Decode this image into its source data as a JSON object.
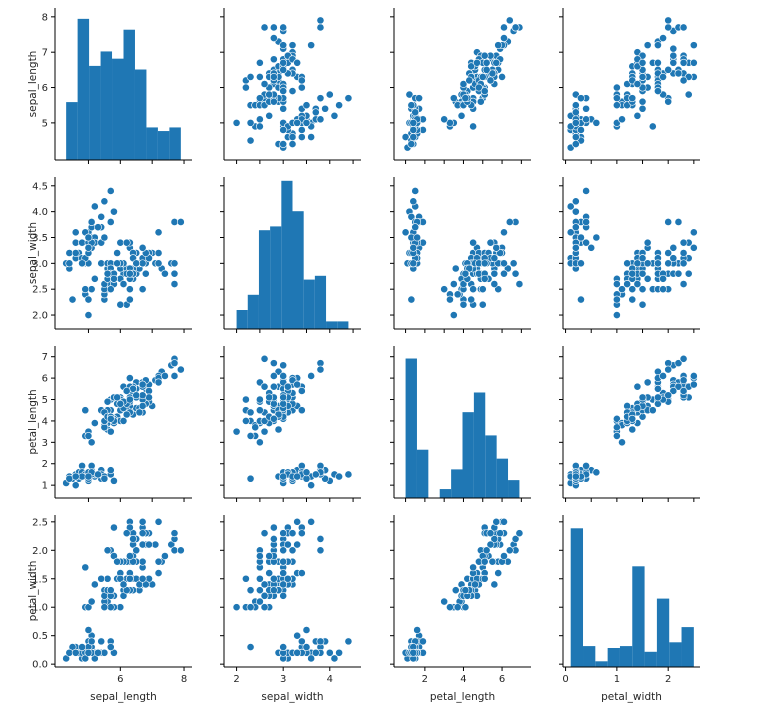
{
  "chart_data": {
    "type": "pairplot",
    "variables": [
      "sepal_length",
      "sepal_width",
      "petal_length",
      "petal_width"
    ],
    "axis_ranges": {
      "sepal_length": [
        3.95,
        8.25
      ],
      "sepal_width": [
        1.73,
        4.67
      ],
      "petal_length": [
        0.4,
        7.5
      ],
      "petal_width": [
        -0.05,
        2.62
      ]
    },
    "ticks": {
      "sepal_length": [
        {
          "value": 5,
          "label": "5"
        },
        {
          "value": 6,
          "label": "6"
        },
        {
          "value": 7,
          "label": "7"
        },
        {
          "value": 8,
          "label": "8"
        }
      ],
      "sepal_width": [
        {
          "value": 2.0,
          "label": "2.0"
        },
        {
          "value": 2.5,
          "label": "2.5"
        },
        {
          "value": 3.0,
          "label": "3.0"
        },
        {
          "value": 3.5,
          "label": "3.5"
        },
        {
          "value": 4.0,
          "label": "4.0"
        },
        {
          "value": 4.5,
          "label": "4.5"
        }
      ],
      "petal_length": [
        {
          "value": 1,
          "label": "1"
        },
        {
          "value": 2,
          "label": "2"
        },
        {
          "value": 3,
          "label": "3"
        },
        {
          "value": 4,
          "label": "4"
        },
        {
          "value": 5,
          "label": "5"
        },
        {
          "value": 6,
          "label": "6"
        },
        {
          "value": 7,
          "label": "7"
        }
      ],
      "petal_width": [
        {
          "value": 0.0,
          "label": "0.0"
        },
        {
          "value": 0.5,
          "label": "0.5"
        },
        {
          "value": 1.0,
          "label": "1.0"
        },
        {
          "value": 1.5,
          "label": "1.5"
        },
        {
          "value": 2.0,
          "label": "2.0"
        },
        {
          "value": 2.5,
          "label": "2.5"
        }
      ]
    },
    "bottom_ticks": {
      "sepal_length": [
        {
          "value": 6,
          "label": "6"
        },
        {
          "value": 8,
          "label": "8"
        }
      ],
      "sepal_width": [
        {
          "value": 2,
          "label": "2"
        },
        {
          "value": 3,
          "label": "3"
        },
        {
          "value": 4,
          "label": "4"
        }
      ],
      "petal_length": [
        {
          "value": 2,
          "label": "2"
        },
        {
          "value": 4,
          "label": "4"
        },
        {
          "value": 6,
          "label": "6"
        }
      ],
      "petal_width": [
        {
          "value": 0,
          "label": "0"
        },
        {
          "value": 1,
          "label": "1"
        },
        {
          "value": 2,
          "label": "2"
        }
      ]
    },
    "diag_ymax": [
      4.2,
      4.0,
      8.5,
      8.0
    ],
    "histograms": {
      "sepal_length": {
        "edges": [
          4.3,
          4.66,
          5.02,
          5.38,
          5.74,
          6.1,
          6.46,
          6.82,
          7.18,
          7.54,
          7.9
        ],
        "counts": [
          1.6,
          3.9,
          2.6,
          3.0,
          2.8,
          3.6,
          2.5,
          0.9,
          0.8,
          0.9
        ]
      },
      "sepal_width": {
        "edges": [
          2.0,
          2.24,
          2.48,
          2.72,
          2.96,
          3.2,
          3.44,
          3.68,
          3.92,
          4.16,
          4.4
        ],
        "counts": [
          0.5,
          0.9,
          2.6,
          2.7,
          3.9,
          3.1,
          1.3,
          1.4,
          0.2,
          0.2
        ]
      },
      "petal_length": {
        "edges": [
          1.0,
          1.59,
          2.18,
          2.77,
          3.36,
          3.95,
          4.54,
          5.13,
          5.72,
          6.31,
          6.9
        ],
        "counts": [
          7.8,
          2.7,
          0.0,
          0.5,
          1.6,
          4.8,
          5.9,
          3.5,
          2.2,
          1.0
        ]
      },
      "petal_width": {
        "edges": [
          0.1,
          0.34,
          0.58,
          0.82,
          1.06,
          1.3,
          1.54,
          1.78,
          2.02,
          2.26,
          2.5
        ],
        "counts": [
          7.3,
          1.1,
          0.3,
          1.0,
          1.1,
          5.3,
          0.8,
          3.6,
          1.3,
          2.1
        ]
      }
    },
    "points": [
      [
        5.1,
        3.5,
        1.4,
        0.2
      ],
      [
        4.9,
        3.0,
        1.4,
        0.2
      ],
      [
        4.7,
        3.2,
        1.3,
        0.2
      ],
      [
        4.6,
        3.1,
        1.5,
        0.2
      ],
      [
        5.0,
        3.6,
        1.4,
        0.2
      ],
      [
        5.4,
        3.9,
        1.7,
        0.4
      ],
      [
        4.6,
        3.4,
        1.4,
        0.3
      ],
      [
        5.0,
        3.4,
        1.5,
        0.2
      ],
      [
        4.4,
        2.9,
        1.4,
        0.2
      ],
      [
        4.9,
        3.1,
        1.5,
        0.1
      ],
      [
        5.4,
        3.7,
        1.5,
        0.2
      ],
      [
        4.8,
        3.4,
        1.6,
        0.2
      ],
      [
        4.8,
        3.0,
        1.4,
        0.1
      ],
      [
        4.3,
        3.0,
        1.1,
        0.1
      ],
      [
        5.8,
        4.0,
        1.2,
        0.2
      ],
      [
        5.7,
        4.4,
        1.5,
        0.4
      ],
      [
        5.4,
        3.9,
        1.3,
        0.4
      ],
      [
        5.1,
        3.5,
        1.4,
        0.3
      ],
      [
        5.7,
        3.8,
        1.7,
        0.3
      ],
      [
        5.1,
        3.8,
        1.5,
        0.3
      ],
      [
        5.4,
        3.4,
        1.7,
        0.2
      ],
      [
        5.1,
        3.7,
        1.5,
        0.4
      ],
      [
        4.6,
        3.6,
        1.0,
        0.2
      ],
      [
        5.1,
        3.3,
        1.7,
        0.5
      ],
      [
        4.8,
        3.4,
        1.9,
        0.2
      ],
      [
        5.0,
        3.0,
        1.6,
        0.2
      ],
      [
        5.0,
        3.4,
        1.6,
        0.4
      ],
      [
        5.2,
        3.5,
        1.5,
        0.2
      ],
      [
        5.2,
        3.4,
        1.4,
        0.2
      ],
      [
        4.7,
        3.2,
        1.6,
        0.2
      ],
      [
        4.8,
        3.1,
        1.6,
        0.2
      ],
      [
        5.4,
        3.4,
        1.5,
        0.4
      ],
      [
        5.2,
        4.1,
        1.5,
        0.1
      ],
      [
        5.5,
        4.2,
        1.4,
        0.2
      ],
      [
        4.9,
        3.1,
        1.5,
        0.2
      ],
      [
        5.0,
        3.2,
        1.2,
        0.2
      ],
      [
        5.5,
        3.5,
        1.3,
        0.2
      ],
      [
        4.9,
        3.6,
        1.4,
        0.1
      ],
      [
        4.4,
        3.0,
        1.3,
        0.2
      ],
      [
        5.1,
        3.4,
        1.5,
        0.2
      ],
      [
        5.0,
        3.5,
        1.3,
        0.3
      ],
      [
        4.5,
        2.3,
        1.3,
        0.3
      ],
      [
        4.4,
        3.2,
        1.3,
        0.2
      ],
      [
        5.0,
        3.5,
        1.6,
        0.6
      ],
      [
        5.1,
        3.8,
        1.9,
        0.4
      ],
      [
        4.8,
        3.0,
        1.4,
        0.3
      ],
      [
        5.1,
        3.8,
        1.6,
        0.2
      ],
      [
        4.6,
        3.2,
        1.4,
        0.2
      ],
      [
        5.3,
        3.7,
        1.5,
        0.2
      ],
      [
        5.0,
        3.3,
        1.4,
        0.2
      ],
      [
        7.0,
        3.2,
        4.7,
        1.4
      ],
      [
        6.4,
        3.2,
        4.5,
        1.5
      ],
      [
        6.9,
        3.1,
        4.9,
        1.5
      ],
      [
        5.5,
        2.3,
        4.0,
        1.3
      ],
      [
        6.5,
        2.8,
        4.6,
        1.5
      ],
      [
        5.7,
        2.8,
        4.5,
        1.3
      ],
      [
        6.3,
        3.3,
        4.7,
        1.6
      ],
      [
        4.9,
        2.4,
        3.3,
        1.0
      ],
      [
        6.6,
        2.9,
        4.6,
        1.3
      ],
      [
        5.2,
        2.7,
        3.9,
        1.4
      ],
      [
        5.0,
        2.0,
        3.5,
        1.0
      ],
      [
        5.9,
        3.0,
        4.2,
        1.5
      ],
      [
        6.0,
        2.2,
        4.0,
        1.0
      ],
      [
        6.1,
        2.9,
        4.7,
        1.4
      ],
      [
        5.6,
        2.9,
        3.6,
        1.3
      ],
      [
        6.7,
        3.1,
        4.4,
        1.4
      ],
      [
        5.6,
        3.0,
        4.5,
        1.5
      ],
      [
        5.8,
        2.7,
        4.1,
        1.0
      ],
      [
        6.2,
        2.2,
        4.5,
        1.5
      ],
      [
        5.6,
        2.5,
        3.9,
        1.1
      ],
      [
        5.9,
        3.2,
        4.8,
        1.8
      ],
      [
        6.1,
        2.8,
        4.0,
        1.3
      ],
      [
        6.3,
        2.5,
        4.9,
        1.5
      ],
      [
        6.1,
        2.8,
        4.7,
        1.2
      ],
      [
        6.4,
        2.9,
        4.3,
        1.3
      ],
      [
        6.6,
        3.0,
        4.4,
        1.4
      ],
      [
        6.8,
        2.8,
        4.8,
        1.4
      ],
      [
        6.7,
        3.0,
        5.0,
        1.7
      ],
      [
        6.0,
        2.9,
        4.5,
        1.5
      ],
      [
        5.7,
        2.6,
        3.5,
        1.0
      ],
      [
        5.5,
        2.4,
        3.8,
        1.1
      ],
      [
        5.5,
        2.4,
        3.7,
        1.0
      ],
      [
        5.8,
        2.7,
        3.9,
        1.2
      ],
      [
        6.0,
        2.7,
        5.1,
        1.6
      ],
      [
        5.4,
        3.0,
        4.5,
        1.5
      ],
      [
        6.0,
        3.4,
        4.5,
        1.6
      ],
      [
        6.7,
        3.1,
        4.7,
        1.5
      ],
      [
        6.3,
        2.3,
        4.4,
        1.3
      ],
      [
        5.6,
        3.0,
        4.1,
        1.3
      ],
      [
        5.5,
        2.5,
        4.0,
        1.3
      ],
      [
        5.5,
        2.6,
        4.4,
        1.2
      ],
      [
        6.1,
        3.0,
        4.6,
        1.4
      ],
      [
        5.8,
        2.6,
        4.0,
        1.2
      ],
      [
        5.0,
        2.3,
        3.3,
        1.0
      ],
      [
        5.6,
        2.7,
        4.2,
        1.3
      ],
      [
        5.7,
        3.0,
        4.2,
        1.2
      ],
      [
        5.7,
        2.9,
        4.2,
        1.3
      ],
      [
        6.2,
        2.9,
        4.3,
        1.3
      ],
      [
        5.1,
        2.5,
        3.0,
        1.1
      ],
      [
        5.7,
        2.8,
        4.1,
        1.3
      ],
      [
        6.3,
        3.3,
        6.0,
        2.5
      ],
      [
        5.8,
        2.7,
        5.1,
        1.9
      ],
      [
        7.1,
        3.0,
        5.9,
        2.1
      ],
      [
        6.3,
        2.9,
        5.6,
        1.8
      ],
      [
        6.5,
        3.0,
        5.8,
        2.2
      ],
      [
        7.6,
        3.0,
        6.6,
        2.1
      ],
      [
        4.9,
        2.5,
        4.5,
        1.7
      ],
      [
        7.3,
        2.9,
        6.3,
        1.8
      ],
      [
        6.7,
        2.5,
        5.8,
        1.8
      ],
      [
        7.2,
        3.6,
        6.1,
        2.5
      ],
      [
        6.5,
        3.2,
        5.1,
        2.0
      ],
      [
        6.4,
        2.7,
        5.3,
        1.9
      ],
      [
        6.8,
        3.0,
        5.5,
        2.1
      ],
      [
        5.7,
        2.5,
        5.0,
        2.0
      ],
      [
        5.8,
        2.8,
        5.1,
        2.4
      ],
      [
        6.4,
        3.2,
        5.3,
        2.3
      ],
      [
        6.5,
        3.0,
        5.5,
        1.8
      ],
      [
        7.7,
        3.8,
        6.7,
        2.2
      ],
      [
        7.7,
        2.6,
        6.9,
        2.3
      ],
      [
        6.0,
        2.2,
        5.0,
        1.5
      ],
      [
        6.9,
        3.2,
        5.7,
        2.3
      ],
      [
        5.6,
        2.8,
        4.9,
        2.0
      ],
      [
        7.7,
        2.8,
        6.7,
        2.0
      ],
      [
        6.3,
        2.7,
        4.9,
        1.8
      ],
      [
        6.7,
        3.3,
        5.7,
        2.1
      ],
      [
        7.2,
        3.2,
        6.0,
        1.8
      ],
      [
        6.2,
        2.8,
        4.8,
        1.8
      ],
      [
        6.1,
        3.0,
        4.9,
        1.8
      ],
      [
        6.4,
        2.8,
        5.6,
        2.1
      ],
      [
        7.2,
        3.0,
        5.8,
        1.6
      ],
      [
        7.4,
        2.8,
        6.1,
        1.9
      ],
      [
        7.9,
        3.8,
        6.4,
        2.0
      ],
      [
        6.4,
        2.8,
        5.6,
        2.2
      ],
      [
        6.3,
        2.8,
        5.1,
        1.5
      ],
      [
        6.1,
        2.6,
        5.6,
        1.4
      ],
      [
        7.7,
        3.0,
        6.1,
        2.3
      ],
      [
        6.3,
        3.4,
        5.6,
        2.4
      ],
      [
        6.4,
        3.1,
        5.5,
        1.8
      ],
      [
        6.0,
        3.0,
        4.8,
        1.8
      ],
      [
        6.9,
        3.1,
        5.4,
        2.1
      ],
      [
        6.7,
        3.1,
        5.6,
        2.4
      ],
      [
        6.9,
        3.1,
        5.1,
        2.3
      ],
      [
        5.8,
        2.7,
        5.1,
        1.9
      ],
      [
        6.8,
        3.2,
        5.9,
        2.3
      ],
      [
        6.7,
        3.3,
        5.7,
        2.5
      ],
      [
        6.7,
        3.0,
        5.2,
        2.3
      ],
      [
        6.3,
        2.5,
        5.0,
        1.9
      ],
      [
        6.5,
        3.0,
        5.2,
        2.0
      ],
      [
        6.2,
        3.4,
        5.4,
        2.3
      ],
      [
        5.9,
        3.0,
        5.1,
        1.8
      ]
    ],
    "colors": {
      "marker_fill": "#1f77b4",
      "marker_edge": "#ffffff",
      "bar_fill": "#1f77b4",
      "axis": "#000000",
      "text": "#262626"
    }
  }
}
